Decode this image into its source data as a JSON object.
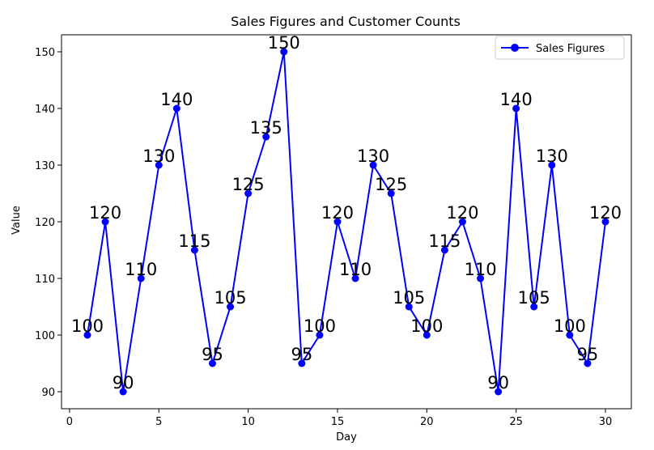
{
  "chart_data": {
    "type": "line",
    "title": "Sales Figures and Customer Counts",
    "xlabel": "Day",
    "ylabel": "Value",
    "xlim": [
      -0.45,
      31.45
    ],
    "ylim": [
      87.0,
      153.0
    ],
    "xticks": [
      0,
      5,
      10,
      15,
      20,
      25,
      30
    ],
    "yticks": [
      90,
      100,
      110,
      120,
      130,
      140,
      150
    ],
    "grid": false,
    "legend_position": "top-right",
    "series": [
      {
        "name": "Sales Figures",
        "color": "#0000ff",
        "marker": "circle",
        "x": [
          1,
          2,
          3,
          4,
          5,
          6,
          7,
          8,
          9,
          10,
          11,
          12,
          13,
          14,
          15,
          16,
          17,
          18,
          19,
          20,
          21,
          22,
          23,
          24,
          25,
          26,
          27,
          28,
          29,
          30
        ],
        "values": [
          100,
          120,
          90,
          110,
          130,
          140,
          115,
          95,
          105,
          125,
          135,
          150,
          95,
          100,
          120,
          110,
          130,
          125,
          105,
          100,
          115,
          120,
          110,
          90,
          140,
          105,
          130,
          100,
          95,
          120
        ]
      }
    ]
  }
}
